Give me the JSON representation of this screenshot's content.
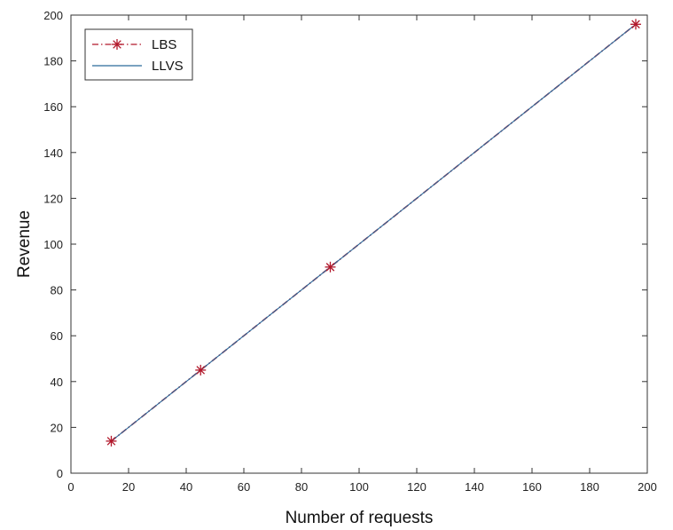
{
  "chart_data": {
    "type": "line",
    "title": "",
    "xlabel": "Number of requests",
    "ylabel": "Revenue",
    "xlim": [
      0,
      200
    ],
    "ylim": [
      0,
      200
    ],
    "xticks": [
      0,
      20,
      40,
      60,
      80,
      100,
      120,
      140,
      160,
      180,
      200
    ],
    "yticks": [
      0,
      20,
      40,
      60,
      80,
      100,
      120,
      140,
      160,
      180,
      200
    ],
    "grid": false,
    "legend_position": "top-left",
    "series": [
      {
        "name": "LBS",
        "color": "#b2182b",
        "line_style": "dash-dot",
        "marker": "asterisk",
        "x": [
          14,
          45,
          90,
          196
        ],
        "y": [
          14,
          45,
          90,
          196
        ]
      },
      {
        "name": "LLVS",
        "color": "#2b6a9b",
        "line_style": "solid",
        "marker": "none",
        "x": [
          14,
          45,
          90,
          196
        ],
        "y": [
          14,
          45,
          90,
          196
        ]
      }
    ]
  }
}
